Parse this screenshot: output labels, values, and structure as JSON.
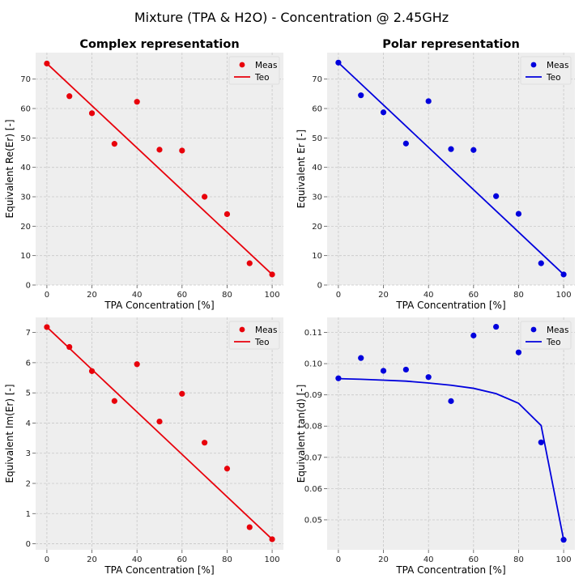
{
  "figure": {
    "title": "Mixture (TPA & H2O) - Concentration @ 2.45GHz"
  },
  "chart_data": [
    {
      "type": "scatter",
      "title": "Complex representation",
      "xlabel": "TPA Concentration [%]",
      "ylabel": "Equivalent Re(Er)  [-]",
      "xlim": [
        -5,
        105
      ],
      "ylim": [
        0,
        79
      ],
      "xticks": [
        0,
        20,
        40,
        60,
        80,
        100
      ],
      "yticks": [
        0,
        10,
        20,
        30,
        40,
        50,
        60,
        70
      ],
      "tick_decimals": 0,
      "grid": true,
      "legend": "top-right",
      "color": "#e8000b",
      "series": [
        {
          "name": "Meas",
          "kind": "scatter",
          "x": [
            0,
            10,
            20,
            30,
            40,
            50,
            60,
            70,
            80,
            90,
            100
          ],
          "values": [
            75.3,
            64.2,
            58.4,
            48.0,
            62.3,
            46.0,
            45.7,
            30.0,
            24.1,
            7.4,
            3.6
          ]
        },
        {
          "name": "Teo",
          "kind": "line",
          "x": [
            0,
            100
          ],
          "values": [
            75.3,
            3.6
          ]
        }
      ]
    },
    {
      "type": "scatter",
      "title": "Polar representation",
      "xlabel": "TPA Concentration [%]",
      "ylabel": "Equivalent Er  [-]",
      "xlim": [
        -5,
        105
      ],
      "ylim": [
        0,
        79
      ],
      "xticks": [
        0,
        20,
        40,
        60,
        80,
        100
      ],
      "yticks": [
        0,
        10,
        20,
        30,
        40,
        50,
        60,
        70
      ],
      "tick_decimals": 0,
      "grid": true,
      "legend": "top-right",
      "color": "#0000dd",
      "series": [
        {
          "name": "Meas",
          "kind": "scatter",
          "x": [
            0,
            10,
            20,
            30,
            40,
            50,
            60,
            70,
            80,
            90,
            100
          ],
          "values": [
            75.6,
            64.5,
            58.7,
            48.1,
            62.5,
            46.2,
            45.9,
            30.2,
            24.2,
            7.4,
            3.6
          ]
        },
        {
          "name": "Teo",
          "kind": "line",
          "x": [
            0,
            100
          ],
          "values": [
            75.6,
            3.6
          ]
        }
      ]
    },
    {
      "type": "scatter",
      "title": "",
      "xlabel": "TPA Concentration [%]",
      "ylabel": "Equivalent Im(Er)  [-]",
      "xlim": [
        -5,
        105
      ],
      "ylim": [
        -0.2,
        7.5
      ],
      "xticks": [
        0,
        20,
        40,
        60,
        80,
        100
      ],
      "yticks": [
        0,
        1,
        2,
        3,
        4,
        5,
        6,
        7
      ],
      "tick_decimals": 0,
      "grid": true,
      "legend": "top-right",
      "color": "#e8000b",
      "series": [
        {
          "name": "Meas",
          "kind": "scatter",
          "x": [
            0,
            10,
            20,
            30,
            40,
            50,
            60,
            70,
            80,
            90,
            100
          ],
          "values": [
            7.18,
            6.52,
            5.72,
            4.73,
            5.95,
            4.05,
            4.97,
            3.35,
            2.49,
            0.55,
            0.15
          ]
        },
        {
          "name": "Teo",
          "kind": "line",
          "x": [
            0,
            100
          ],
          "values": [
            7.18,
            0.15
          ]
        }
      ]
    },
    {
      "type": "scatter",
      "title": "",
      "xlabel": "TPA Concentration [%]",
      "ylabel": "Equivalent tan(d)  [-]",
      "xlim": [
        -5,
        105
      ],
      "ylim": [
        0.0404,
        0.1148
      ],
      "xticks": [
        0,
        20,
        40,
        60,
        80,
        100
      ],
      "yticks": [
        0.05,
        0.06,
        0.07,
        0.08,
        0.09,
        0.1,
        0.11
      ],
      "tick_decimals": 2,
      "grid": true,
      "legend": "top-right",
      "color": "#0000dd",
      "series": [
        {
          "name": "Meas",
          "kind": "scatter",
          "x": [
            0,
            10,
            20,
            30,
            40,
            50,
            60,
            70,
            80,
            90,
            100
          ],
          "values": [
            0.0953,
            0.1018,
            0.0977,
            0.0981,
            0.0957,
            0.088,
            0.109,
            0.1118,
            0.1036,
            0.0748,
            0.0436
          ]
        },
        {
          "name": "Teo",
          "kind": "line",
          "x": [
            0,
            10,
            20,
            30,
            40,
            50,
            60,
            70,
            80,
            90,
            100
          ],
          "values": [
            0.0952,
            0.095,
            0.0947,
            0.0944,
            0.0938,
            0.0931,
            0.0921,
            0.0904,
            0.0873,
            0.0802,
            0.0436
          ]
        }
      ]
    }
  ]
}
